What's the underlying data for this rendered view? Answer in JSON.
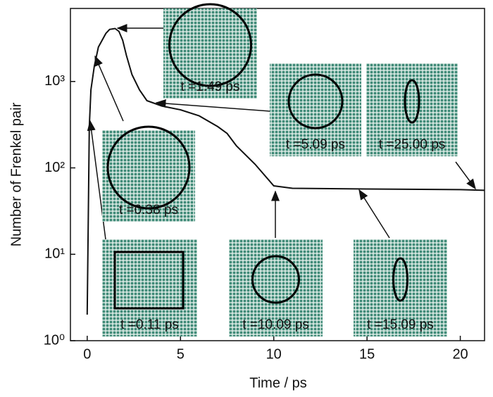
{
  "chart_data": {
    "type": "line",
    "x_label": "Time / ps",
    "y_label": "Number of Frenkel pair",
    "log_y": true,
    "xlim": [
      -0.9,
      21.3
    ],
    "ylim": [
      1,
      7000
    ],
    "xticks": [
      0,
      5,
      10,
      15,
      20
    ],
    "yticks": [
      {
        "value": 1,
        "label": "10⁰"
      },
      {
        "value": 10,
        "label": "10¹"
      },
      {
        "value": 100,
        "label": "10²"
      },
      {
        "value": 1000,
        "label": "10³"
      }
    ],
    "x": [
      0,
      0.05,
      0.11,
      0.2,
      0.38,
      0.6,
      1,
      1.2,
      1.49,
      1.7,
      1.9,
      2.1,
      2.4,
      2.8,
      3.2,
      4,
      5,
      6,
      7,
      7.5,
      8,
      9,
      10,
      10.5,
      11,
      15,
      20,
      21.3
    ],
    "series": [
      {
        "color": "#111111",
        "values": [
          2,
          20,
          300,
          800,
          1500,
          2500,
          3600,
          4000,
          4100,
          3800,
          3000,
          2000,
          1200,
          800,
          600,
          520,
          470,
          400,
          300,
          250,
          180,
          110,
          62,
          60,
          58,
          57,
          56,
          55
        ]
      }
    ],
    "annotations": [
      "t =0.11 ps",
      "t =0.38 ps",
      "t =1.49 ps",
      "t =5.09 ps",
      "t =25.00 ps",
      "t =10.09 ps",
      "t =15.09 ps"
    ]
  }
}
